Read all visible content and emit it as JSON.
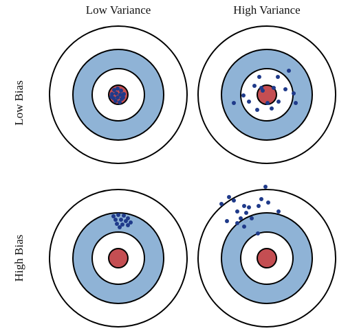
{
  "columns": [
    "Low Variance",
    "High Variance"
  ],
  "rows": [
    "Low Bias",
    "High Bias"
  ]
}
